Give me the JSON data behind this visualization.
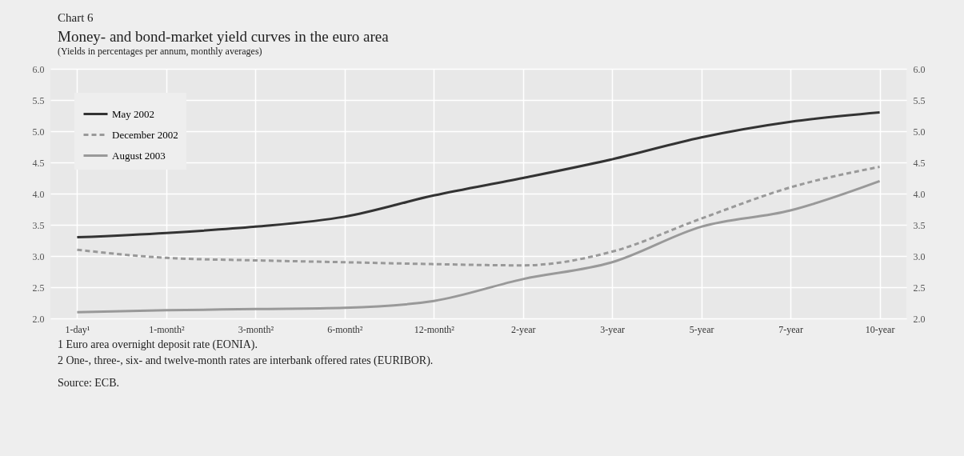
{
  "chart_data": {
    "type": "line",
    "title": "Money- and bond-market yield curves in the euro area",
    "subtitle": "(Yields in percentages per annum, monthly averages)",
    "annotations": [
      "Chart 6",
      "1  Euro area overnight deposit rate (EONIA).",
      "2  One-, three-, six- and twelve-month rates are interbank offered rates (EURIBOR).",
      "Source: ECB."
    ],
    "categories": [
      "1-day¹",
      "1-month²",
      "3-month²",
      "6-month²",
      "12-month²",
      "2-year",
      "3-year",
      "5-year",
      "7-year",
      "10-year"
    ],
    "series": [
      {
        "name": "May 2002",
        "color": "#333333",
        "line_style": "solid",
        "values": [
          3.3,
          3.37,
          3.47,
          3.63,
          3.97,
          4.25,
          4.55,
          4.9,
          5.15,
          5.3
        ]
      },
      {
        "name": "December 2002",
        "color": "#999999",
        "line_style": "dashed",
        "values": [
          3.1,
          2.97,
          2.93,
          2.9,
          2.87,
          2.85,
          3.07,
          3.6,
          4.1,
          4.43
        ]
      },
      {
        "name": "August 2003",
        "color": "#999999",
        "line_style": "solid",
        "values": [
          2.1,
          2.13,
          2.15,
          2.17,
          2.28,
          2.63,
          2.9,
          3.47,
          3.73,
          4.2
        ]
      }
    ],
    "ylim": [
      2,
      6
    ],
    "yticks": [
      {
        "value": 2,
        "label": "2.0"
      },
      2.5,
      {
        "value": 3,
        "label": "3.0"
      },
      3.5,
      {
        "value": 4,
        "label": "4.0"
      },
      4.5,
      {
        "value": 5,
        "label": "5.0"
      },
      5.5,
      {
        "value": 6,
        "label": "6.0"
      }
    ],
    "y2lim": [
      2,
      6
    ],
    "y2ticks": [
      {
        "value": 2,
        "label": "2.0"
      },
      2.5,
      {
        "value": 3,
        "label": "3.0"
      },
      3.5,
      {
        "value": 4,
        "label": "4.0"
      },
      4.5,
      {
        "value": 5,
        "label": "5.0"
      },
      5.5,
      {
        "value": 6,
        "label": "6.0"
      }
    ],
    "grid": true,
    "legend": "top left"
  }
}
